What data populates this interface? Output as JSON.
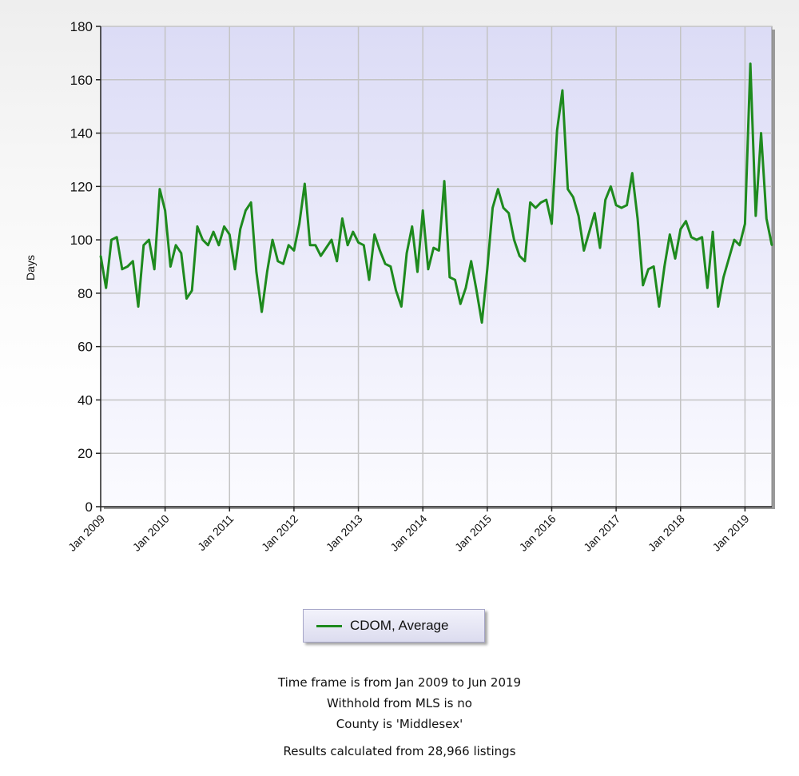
{
  "chart_data": {
    "type": "line",
    "ylabel": "Days",
    "xlabel": "",
    "ylim": [
      0,
      180
    ],
    "yticks": [
      0,
      20,
      40,
      60,
      80,
      100,
      120,
      140,
      160,
      180
    ],
    "xlim": [
      "Jan 2009",
      "Jun 2019"
    ],
    "x_tick_labels": [
      "Jan 2009",
      "Jan 2010",
      "Jan 2011",
      "Jan 2012",
      "Jan 2013",
      "Jan 2014",
      "Jan 2015",
      "Jan 2016",
      "Jan 2017",
      "Jan 2018",
      "Jan 2019"
    ],
    "grid": true,
    "legend_position": "bottom-center",
    "series": [
      {
        "name": "CDOM, Average",
        "color": "#1e8a1e",
        "x_start": "Jan 2009",
        "x_step": "1 month",
        "values": [
          94,
          82,
          100,
          101,
          89,
          90,
          92,
          75,
          98,
          100,
          89,
          119,
          111,
          90,
          98,
          95,
          78,
          81,
          105,
          100,
          98,
          103,
          98,
          105,
          102,
          89,
          104,
          111,
          114,
          88,
          73,
          88,
          100,
          92,
          91,
          98,
          96,
          106,
          121,
          98,
          98,
          94,
          97,
          100,
          92,
          108,
          98,
          103,
          99,
          98,
          85,
          102,
          96,
          91,
          90,
          81,
          75,
          95,
          105,
          88,
          111,
          89,
          97,
          96,
          122,
          86,
          85,
          76,
          82,
          92,
          81,
          69,
          89,
          112,
          119,
          112,
          110,
          100,
          94,
          92,
          114,
          112,
          114,
          115,
          106,
          141,
          156,
          119,
          116,
          109,
          96,
          103,
          110,
          97,
          115,
          120,
          113,
          112,
          113,
          125,
          108,
          83,
          89,
          90,
          75,
          90,
          102,
          93,
          104,
          107,
          101,
          100,
          101,
          82,
          103,
          75,
          86,
          93,
          100,
          98,
          106,
          166,
          109,
          140,
          108,
          98
        ]
      }
    ]
  },
  "footer": {
    "line1": "Time frame is from Jan 2009 to Jun 2019",
    "line2": "Withhold from MLS is no",
    "line3": "County is 'Middlesex'",
    "line4": "Results calculated from 28,966 listings"
  }
}
